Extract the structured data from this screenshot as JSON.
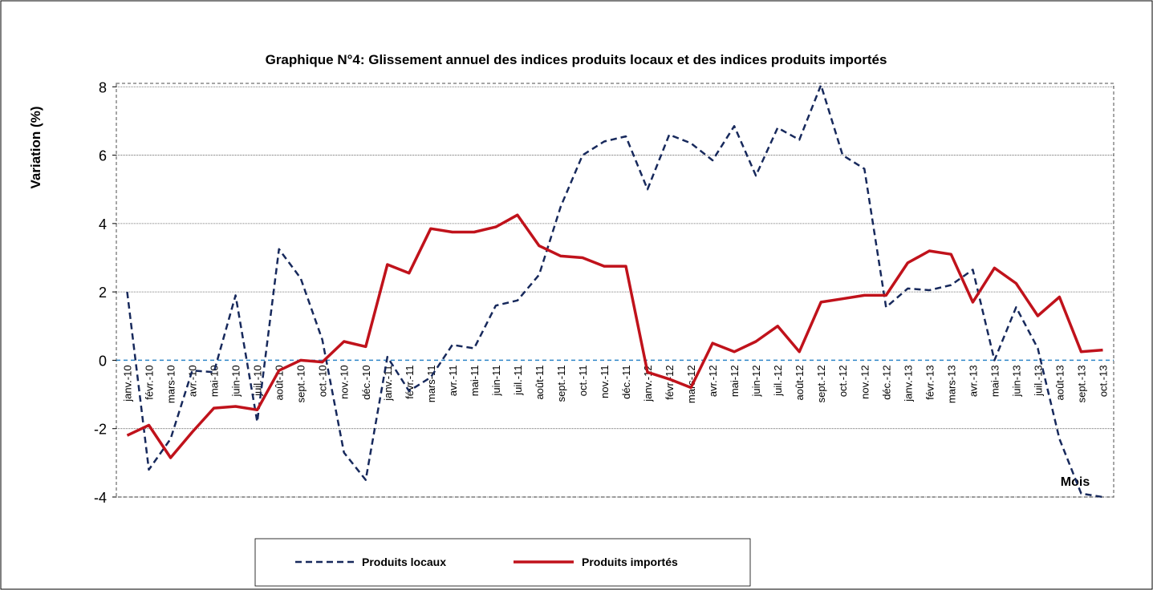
{
  "chart_data": {
    "type": "line",
    "title": "Graphique N°4: Glissement annuel des indices produits locaux et des indices produits importés",
    "y_label": "Variation (%)",
    "x_label": "Mois",
    "categories": [
      "janv.-10",
      "févr.-10",
      "mars-10",
      "avr.-10",
      "mai-10",
      "juin-10",
      "juil.-10",
      "août-10",
      "sept.-10",
      "oct.-10",
      "nov.-10",
      "déc.-10",
      "janv.-11",
      "févr.-11",
      "mars-11",
      "avr.-11",
      "mai-11",
      "juin-11",
      "juil.-11",
      "août-11",
      "sept.-11",
      "oct.-11",
      "nov.-11",
      "déc.-11",
      "janv.-12",
      "févr.-12",
      "mars-12",
      "avr.-12",
      "mai-12",
      "juin-12",
      "juil.-12",
      "août-12",
      "sept.-12",
      "oct.-12",
      "nov.-12",
      "déc.-12",
      "janv.-13",
      "févr.-13",
      "mars-13",
      "avr.-13",
      "mai-13",
      "juin-13",
      "juil.-13",
      "août-13",
      "sept.-13",
      "oct.-13"
    ],
    "series": [
      {
        "name": "Produits locaux",
        "color": "#17295c",
        "line_style": "dashed",
        "values": [
          2.0,
          -3.2,
          -2.3,
          -0.3,
          -0.35,
          1.9,
          -1.8,
          3.25,
          2.4,
          0.6,
          -2.7,
          -3.5,
          0.1,
          -0.9,
          -0.5,
          0.45,
          0.35,
          1.6,
          1.75,
          2.5,
          4.5,
          6.0,
          6.4,
          6.55,
          5.0,
          6.6,
          6.35,
          5.85,
          6.85,
          5.4,
          6.8,
          6.45,
          8.05,
          6.0,
          5.6,
          1.55,
          2.1,
          2.05,
          2.2,
          2.65,
          0.0,
          1.55,
          0.35,
          -2.3,
          -3.9,
          -4.0
        ]
      },
      {
        "name": "Produits importés",
        "color": "#c0121b",
        "line_style": "solid",
        "values": [
          -2.2,
          -1.9,
          -2.85,
          -2.1,
          -1.4,
          -1.35,
          -1.45,
          -0.3,
          0.0,
          -0.05,
          0.55,
          0.4,
          2.8,
          2.55,
          3.85,
          3.75,
          3.75,
          3.9,
          4.25,
          3.35,
          3.05,
          3.0,
          2.75,
          2.75,
          -0.35,
          -0.55,
          -0.8,
          0.5,
          0.25,
          0.55,
          1.0,
          0.25,
          1.7,
          1.8,
          1.9,
          1.9,
          2.85,
          3.2,
          3.1,
          1.7,
          2.7,
          2.25,
          1.3,
          1.85,
          0.25,
          0.3
        ]
      }
    ],
    "ylim": [
      -4,
      8.1
    ],
    "yticks": [
      -4,
      -2,
      0,
      2,
      4,
      6,
      8
    ],
    "grid": true,
    "legend": "bottom"
  }
}
